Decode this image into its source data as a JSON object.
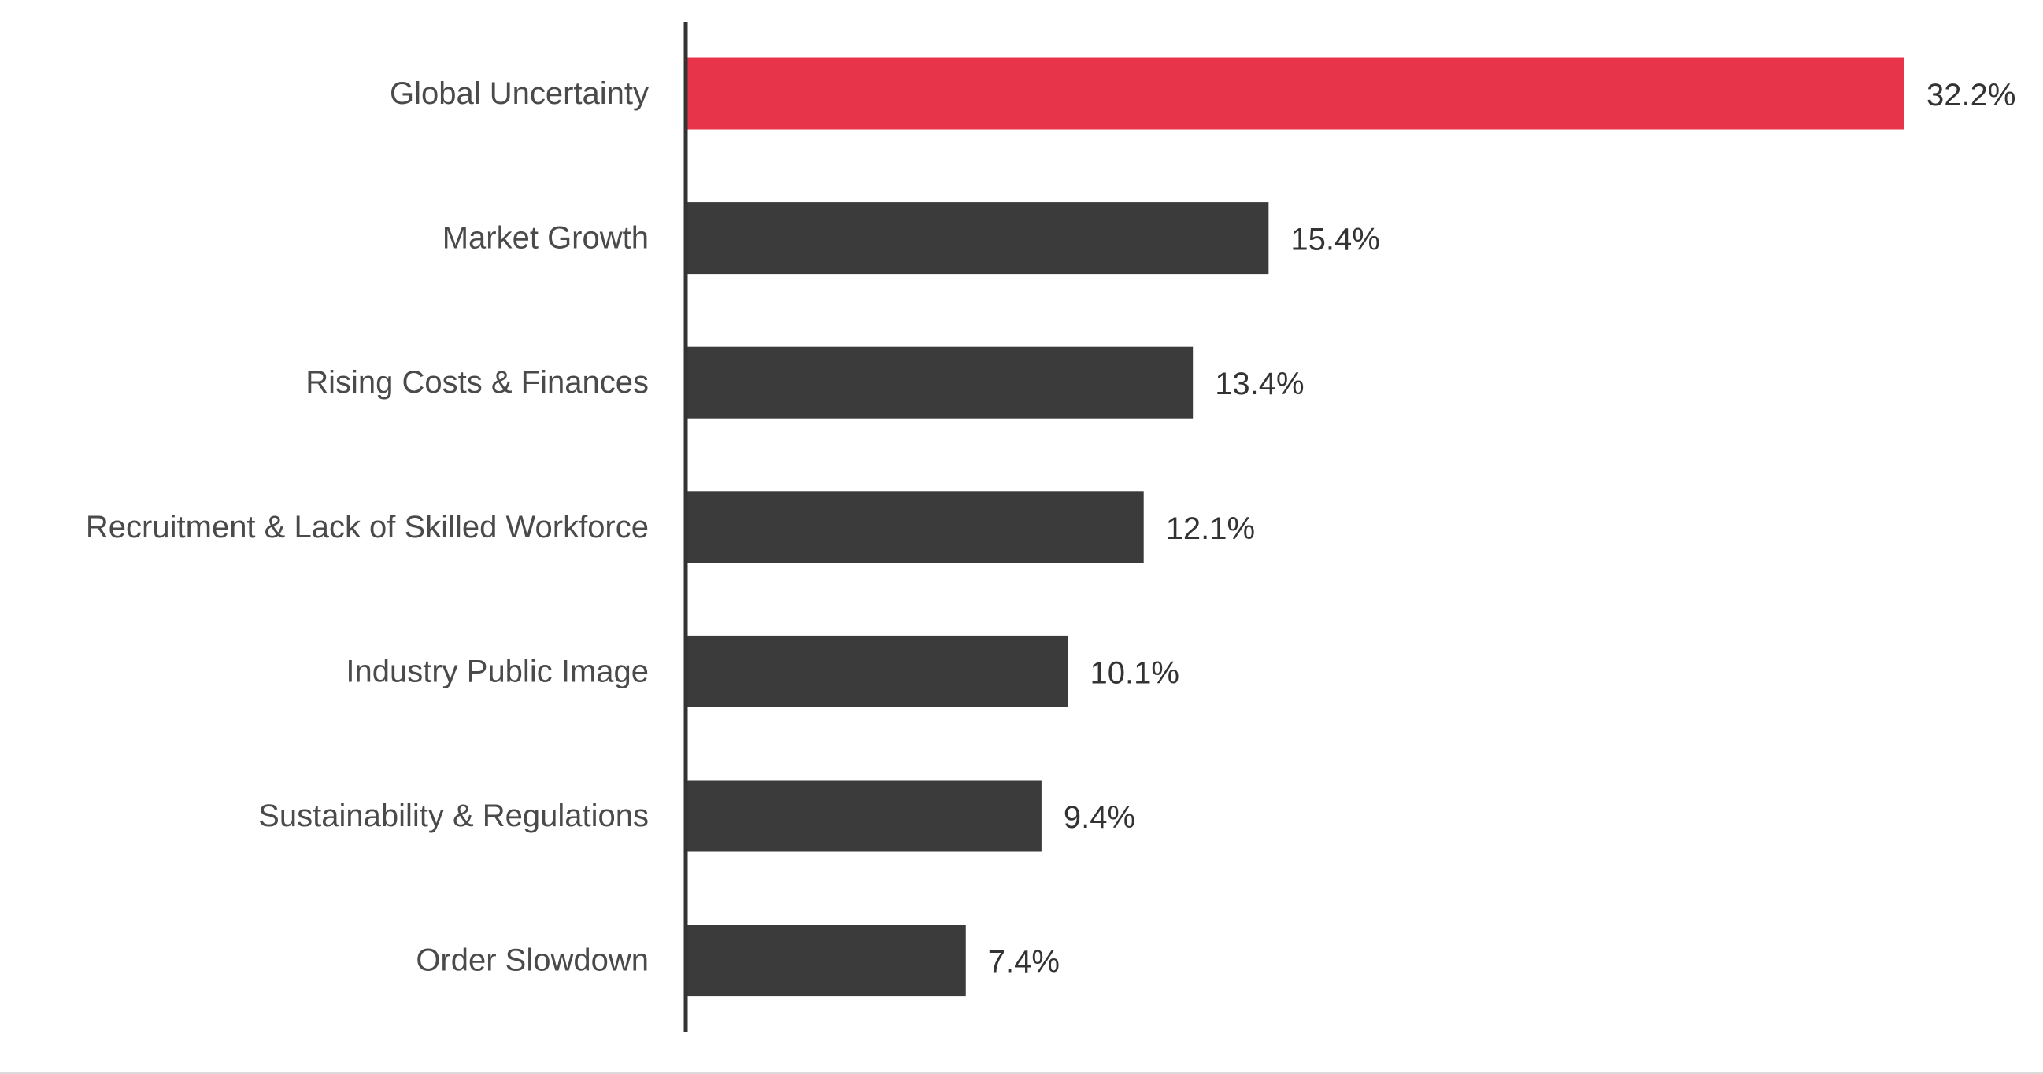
{
  "chart_data": {
    "type": "bar",
    "orientation": "horizontal",
    "categories": [
      "Global Uncertainty",
      "Market Growth",
      "Rising Costs & Finances",
      "Recruitment & Lack of Skilled Workforce",
      "Industry Public Image",
      "Sustainability & Regulations",
      "Order Slowdown"
    ],
    "values": [
      32.2,
      15.4,
      13.4,
      12.1,
      10.1,
      9.4,
      7.4
    ],
    "value_labels": [
      "32.2%",
      "15.4%",
      "13.4%",
      "12.1%",
      "10.1%",
      "9.4%",
      "7.4%"
    ],
    "unit": "%",
    "xlim": [
      0,
      32.2
    ],
    "grid": false,
    "legend": "none",
    "colors": {
      "highlight": "#e8344a",
      "bar": "#3b3b3b",
      "axis": "#333333",
      "category_text": "#4a4a4a",
      "value_text": "#333333"
    },
    "highlight_index": 0
  }
}
